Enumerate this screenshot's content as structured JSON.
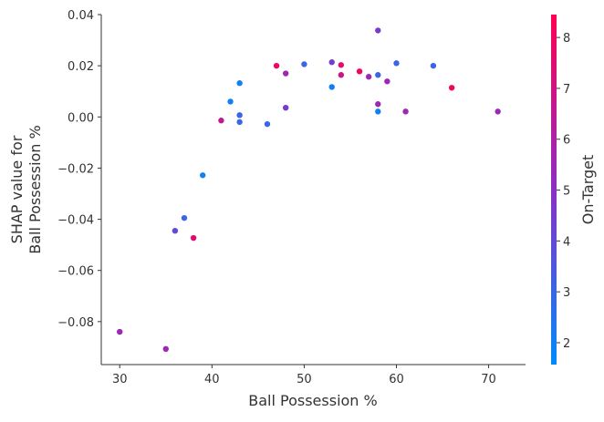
{
  "chart_data": {
    "type": "scatter",
    "xlabel": "Ball Possession %",
    "ylabel_lines": [
      "SHAP value for",
      "Ball Possession %"
    ],
    "xlim": [
      28,
      74
    ],
    "ylim": [
      -0.0968,
      0.04
    ],
    "xticks": [
      30,
      40,
      50,
      60,
      70
    ],
    "yticks": [
      0.04,
      0.02,
      0.0,
      -0.02,
      -0.04,
      -0.06,
      -0.08
    ],
    "ytick_labels": [
      "0.04",
      "0.02",
      "0.00",
      "−0.02",
      "−0.04",
      "−0.06",
      "−0.08"
    ],
    "grid": false,
    "colorbar": {
      "label": "On-Target",
      "range": [
        1.57,
        8.45
      ],
      "ticks": [
        2,
        3,
        4,
        5,
        6,
        7,
        8
      ],
      "colors": [
        "#008bfb",
        "#8b2fc4",
        "#ff0052"
      ]
    },
    "points": [
      [
        30,
        -0.084,
        5.5
      ],
      [
        35,
        -0.0907,
        5.5
      ],
      [
        36,
        -0.0445,
        4
      ],
      [
        37,
        -0.0395,
        3
      ],
      [
        38,
        -0.0473,
        7.5
      ],
      [
        39,
        -0.0228,
        2
      ],
      [
        41,
        -0.0014,
        6.5
      ],
      [
        42,
        0.006,
        2
      ],
      [
        43,
        0.0132,
        2
      ],
      [
        43,
        0.0007,
        3
      ],
      [
        43,
        -0.002,
        3
      ],
      [
        46,
        -0.0028,
        3
      ],
      [
        47,
        0.02,
        8
      ],
      [
        48,
        0.017,
        5.5
      ],
      [
        48,
        0.0036,
        4.5
      ],
      [
        50,
        0.0206,
        3
      ],
      [
        53,
        0.0214,
        4.5
      ],
      [
        53,
        0.0117,
        2
      ],
      [
        54,
        0.0203,
        7.5
      ],
      [
        54,
        0.0164,
        7
      ],
      [
        56,
        0.0178,
        8
      ],
      [
        57,
        0.0157,
        5.5
      ],
      [
        58,
        0.0338,
        4.5
      ],
      [
        58,
        0.0164,
        3
      ],
      [
        58,
        0.005,
        5.5
      ],
      [
        58,
        0.0021,
        2
      ],
      [
        59,
        0.0139,
        5.5
      ],
      [
        60,
        0.021,
        3
      ],
      [
        61,
        0.0021,
        5.5
      ],
      [
        64,
        0.02,
        3
      ],
      [
        66,
        0.0114,
        8
      ],
      [
        71,
        0.0021,
        5.5
      ]
    ]
  }
}
